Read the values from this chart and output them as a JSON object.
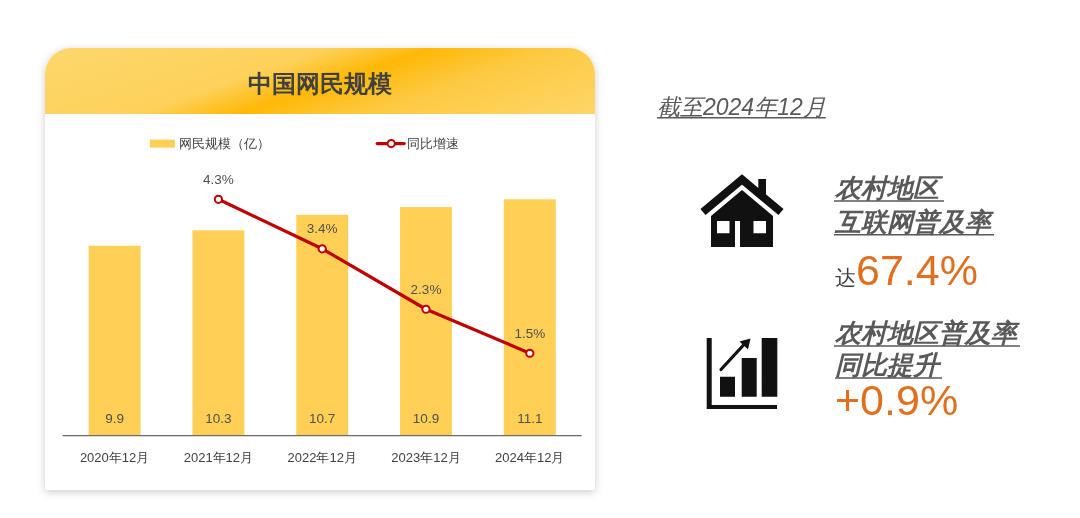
{
  "chart_data": [
    {
      "type": "bar",
      "title": "中国网民规模",
      "categories": [
        "2020年12月",
        "2021年12月",
        "2022年12月",
        "2023年12月",
        "2024年12月"
      ],
      "series": [
        {
          "name": "网民规模（亿）",
          "type": "bar",
          "color": "#ffd055",
          "values": [
            9.9,
            10.3,
            10.7,
            10.9,
            11.1
          ],
          "value_labels": [
            "9.9",
            "10.3",
            "10.7",
            "10.9",
            "11.1"
          ]
        },
        {
          "name": "同比增速",
          "type": "line",
          "axis": "y2",
          "color": "#c00000",
          "marker": "circle",
          "values": [
            null,
            4.3,
            3.4,
            2.3,
            1.5
          ],
          "value_labels": [
            null,
            "4.3%",
            "3.4%",
            "2.3%",
            "1.5%"
          ]
        }
      ],
      "ylim": [
        5,
        11.1
      ],
      "y2lim": [
        0,
        4.3
      ],
      "tick_labels": "x",
      "legend": "top"
    },
    {
      "type": "other",
      "title": "截至2024年12月",
      "annotations": [
        "农村地区",
        "互联网普及率",
        "达67.4%",
        "农村地区普及率",
        "同比提升",
        "+0.9%"
      ]
    }
  ]
}
